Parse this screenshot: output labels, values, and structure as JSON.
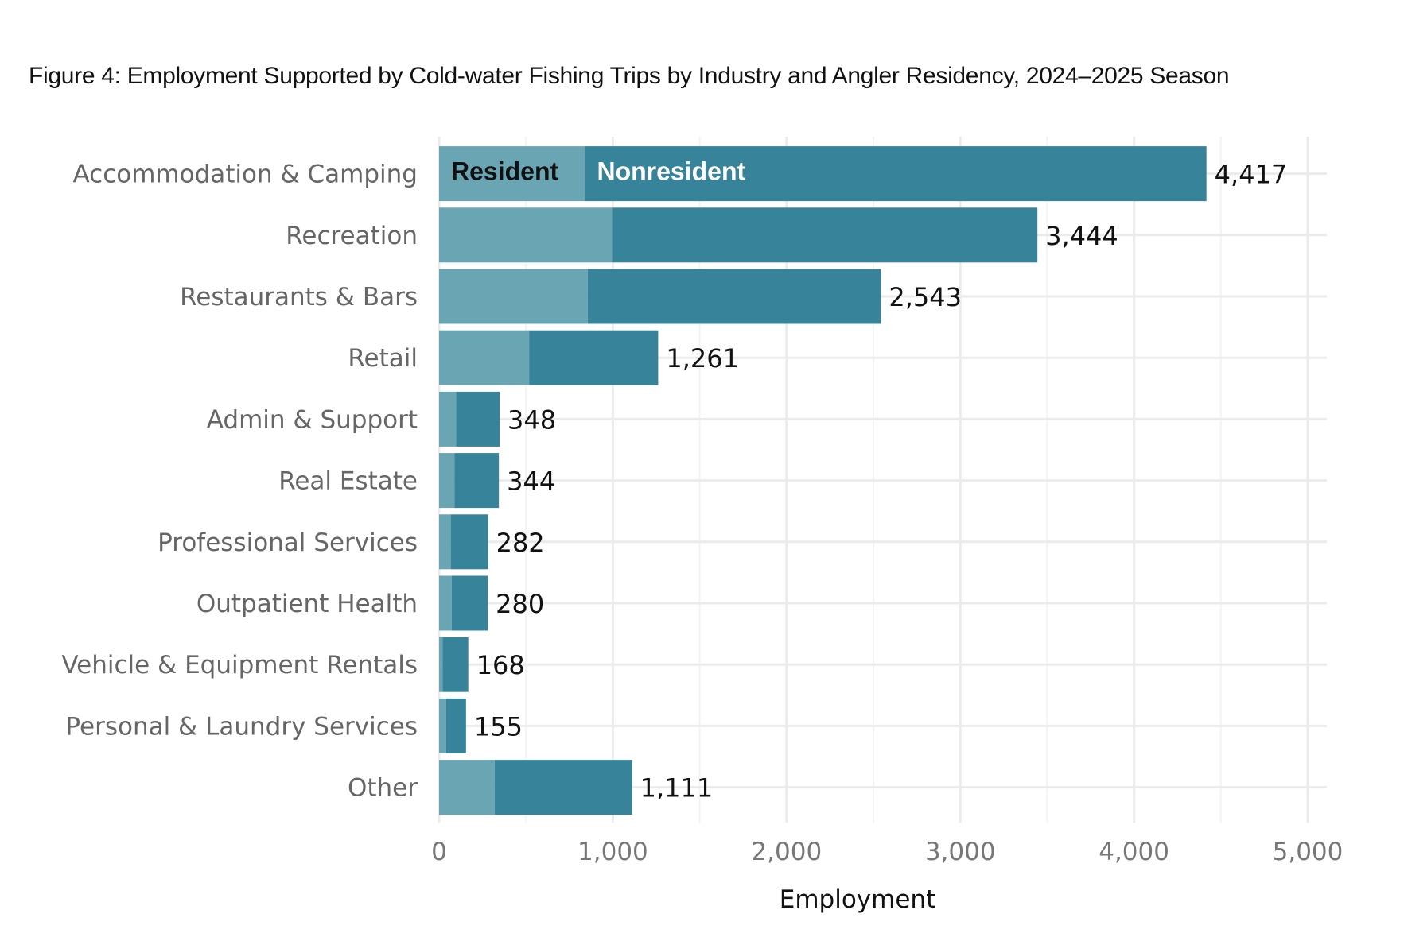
{
  "chart_data": {
    "type": "bar",
    "orientation": "horizontal",
    "stacked": true,
    "title": "Figure 4: Employment Supported by Cold-water Fishing Trips by Industry and Angler Residency, 2024–2025 Season",
    "xlabel": "Employment",
    "ylabel": "",
    "xlim": [
      0,
      5000
    ],
    "xticks": [
      0,
      1000,
      2000,
      3000,
      4000,
      5000
    ],
    "xtick_labels": [
      "0",
      "1,000",
      "2,000",
      "3,000",
      "4,000",
      "5,000"
    ],
    "grid": true,
    "legend": "inside-first-bar",
    "categories": [
      "Accommodation & Camping",
      "Recreation",
      "Restaurants & Bars",
      "Retail",
      "Admin & Support",
      "Real Estate",
      "Professional Services",
      "Outpatient Health",
      "Vehicle & Equipment Rentals",
      "Personal & Laundry Services",
      "Other"
    ],
    "totals": [
      4417,
      3444,
      2543,
      1261,
      348,
      344,
      282,
      280,
      168,
      155,
      1111
    ],
    "total_labels": [
      "4,417",
      "3,444",
      "2,543",
      "1,261",
      "348",
      "344",
      "282",
      "280",
      "168",
      "155",
      "1,111"
    ],
    "series": [
      {
        "name": "Resident",
        "color": "#6aa5b3",
        "values": [
          840,
          995,
          855,
          518,
          98,
          88,
          67,
          72,
          20,
          40,
          320
        ]
      },
      {
        "name": "Nonresident",
        "color": "#37849a",
        "values": [
          3577,
          2449,
          1688,
          743,
          250,
          256,
          215,
          208,
          148,
          115,
          791
        ]
      }
    ]
  }
}
